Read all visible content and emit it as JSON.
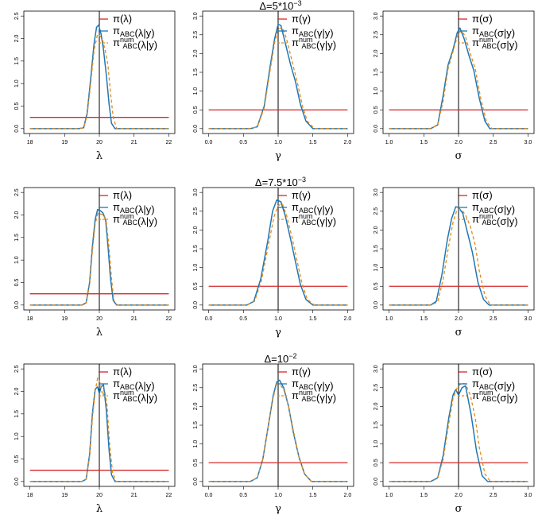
{
  "colors": {
    "prior": "#d62728",
    "abc": "#1f77b4",
    "num": "#e08a1e",
    "axis": "#000000",
    "truth": "#000000"
  },
  "legend_placement": "top-right",
  "row_titles": [
    {
      "main": "Δ=5*10",
      "exp": "−3"
    },
    {
      "main": "Δ=7.5*10",
      "exp": "−3"
    },
    {
      "main": "Δ=10",
      "exp": "−2"
    }
  ],
  "chart_data": [
    {
      "type": "line",
      "row": 0,
      "col": 0,
      "xlabel": "λ",
      "param": "λ",
      "xlim": [
        18,
        22
      ],
      "ylim": [
        0,
        2.5
      ],
      "xticks": [
        "18",
        "19",
        "20",
        "21",
        "22"
      ],
      "yticks": [
        "0.0",
        "0.5",
        "1.0",
        "1.5",
        "2.0",
        "2.5"
      ],
      "truth": 20,
      "series": [
        {
          "name": "π(λ)",
          "kind": "prior",
          "x": [
            18,
            22
          ],
          "y": [
            0.25,
            0.25
          ]
        },
        {
          "name": "πABC(λ|y)",
          "kind": "abc",
          "x": [
            18,
            19.4,
            19.55,
            19.65,
            19.75,
            19.85,
            19.92,
            19.98,
            20.05,
            20.12,
            20.2,
            20.28,
            20.35,
            20.45,
            22
          ],
          "y": [
            0,
            0,
            0.02,
            0.35,
            1.1,
            1.9,
            2.25,
            2.3,
            2.1,
            1.75,
            1.2,
            0.55,
            0.12,
            0,
            0
          ]
        },
        {
          "name": "πABC num(λ|y)",
          "kind": "num",
          "x": [
            18,
            19.4,
            19.55,
            19.65,
            19.75,
            19.85,
            19.95,
            20.02,
            20.1,
            20.18,
            20.25,
            20.32,
            20.4,
            20.5,
            22
          ],
          "y": [
            0,
            0,
            0.02,
            0.3,
            1.0,
            1.75,
            2.1,
            2.05,
            1.95,
            1.7,
            1.4,
            0.8,
            0.25,
            0,
            0
          ]
        }
      ]
    },
    {
      "type": "line",
      "row": 0,
      "col": 1,
      "xlabel": "γ",
      "param": "γ",
      "xlim": [
        0,
        2
      ],
      "ylim": [
        0,
        3
      ],
      "xticks": [
        "0.0",
        "0.5",
        "1.0",
        "1.5",
        "2.0"
      ],
      "yticks": [
        "0.0",
        "0.5",
        "1.0",
        "1.5",
        "2.0",
        "2.5",
        "3.0"
      ],
      "truth": 1.0,
      "series": [
        {
          "name": "π(γ)",
          "kind": "prior",
          "x": [
            0,
            2
          ],
          "y": [
            0.5,
            0.5
          ]
        },
        {
          "name": "πABC(γ|y)",
          "kind": "abc",
          "x": [
            0,
            0.6,
            0.7,
            0.8,
            0.88,
            0.95,
            1.0,
            1.04,
            1.1,
            1.18,
            1.25,
            1.32,
            1.4,
            1.5,
            2
          ],
          "y": [
            0,
            0,
            0.05,
            0.6,
            1.6,
            2.4,
            2.78,
            2.75,
            2.3,
            1.7,
            1.25,
            0.65,
            0.2,
            0,
            0
          ]
        },
        {
          "name": "πABC num(γ|y)",
          "kind": "num",
          "x": [
            0,
            0.6,
            0.7,
            0.8,
            0.88,
            0.95,
            1.0,
            1.06,
            1.12,
            1.2,
            1.28,
            1.35,
            1.42,
            1.52,
            2
          ],
          "y": [
            0,
            0,
            0.05,
            0.55,
            1.5,
            2.3,
            2.65,
            2.7,
            2.4,
            1.8,
            1.2,
            0.6,
            0.2,
            0,
            0
          ]
        }
      ]
    },
    {
      "type": "line",
      "row": 0,
      "col": 2,
      "xlabel": "σ",
      "param": "σ",
      "xlim": [
        1,
        3
      ],
      "ylim": [
        0,
        3
      ],
      "xticks": [
        "1.0",
        "1.5",
        "2.0",
        "2.5",
        "3.0"
      ],
      "yticks": [
        "0.0",
        "0.5",
        "1.0",
        "1.5",
        "2.0",
        "2.5",
        "3.0"
      ],
      "truth": 2.0,
      "series": [
        {
          "name": "π(σ)",
          "kind": "prior",
          "x": [
            1,
            3
          ],
          "y": [
            0.5,
            0.5
          ]
        },
        {
          "name": "πABC(σ|y)",
          "kind": "abc",
          "x": [
            1,
            1.6,
            1.7,
            1.78,
            1.85,
            1.92,
            1.98,
            2.02,
            2.08,
            2.15,
            2.22,
            2.3,
            2.38,
            2.45,
            3
          ],
          "y": [
            0,
            0,
            0.1,
            0.9,
            1.7,
            2.1,
            2.55,
            2.68,
            2.4,
            1.95,
            1.55,
            0.8,
            0.2,
            0,
            0
          ]
        },
        {
          "name": "πABC num(σ|y)",
          "kind": "num",
          "x": [
            1,
            1.6,
            1.7,
            1.78,
            1.85,
            1.92,
            1.98,
            2.04,
            2.1,
            2.17,
            2.24,
            2.32,
            2.4,
            2.48,
            3
          ],
          "y": [
            0,
            0,
            0.1,
            0.75,
            1.6,
            2.05,
            2.45,
            2.62,
            2.45,
            2.0,
            1.6,
            0.8,
            0.2,
            0,
            0
          ]
        }
      ]
    },
    {
      "type": "line",
      "row": 1,
      "col": 0,
      "xlabel": "λ",
      "param": "λ",
      "xlim": [
        18,
        22
      ],
      "ylim": [
        0,
        2.5
      ],
      "xticks": [
        "18",
        "19",
        "20",
        "21",
        "22"
      ],
      "yticks": [
        "0.0",
        "0.5",
        "1.0",
        "1.5",
        "2.0",
        "2.5"
      ],
      "truth": 20,
      "series": [
        {
          "name": "π(λ)",
          "kind": "prior",
          "x": [
            18,
            22
          ],
          "y": [
            0.25,
            0.25
          ]
        },
        {
          "name": "πABC(λ|y)",
          "kind": "abc",
          "x": [
            18,
            19.5,
            19.62,
            19.72,
            19.8,
            19.88,
            19.95,
            20.02,
            20.1,
            20.18,
            20.25,
            20.32,
            20.4,
            20.5,
            22
          ],
          "y": [
            0,
            0,
            0.05,
            0.5,
            1.3,
            1.9,
            2.12,
            2.1,
            2.05,
            1.9,
            1.3,
            0.6,
            0.1,
            0,
            0
          ]
        },
        {
          "name": "πABC num(λ|y)",
          "kind": "num",
          "x": [
            18,
            19.5,
            19.62,
            19.72,
            19.8,
            19.88,
            19.96,
            20.04,
            20.12,
            20.2,
            20.27,
            20.35,
            20.42,
            20.52,
            22
          ],
          "y": [
            0,
            0,
            0.04,
            0.45,
            1.2,
            1.8,
            2.05,
            2.02,
            2.0,
            1.85,
            1.35,
            0.6,
            0.1,
            0,
            0
          ]
        }
      ]
    },
    {
      "type": "line",
      "row": 1,
      "col": 1,
      "xlabel": "γ",
      "param": "γ",
      "xlim": [
        0,
        2
      ],
      "ylim": [
        0,
        3
      ],
      "xticks": [
        "0.0",
        "0.5",
        "1.0",
        "1.5",
        "2.0"
      ],
      "yticks": [
        "0.0",
        "0.5",
        "1.0",
        "1.5",
        "2.0",
        "2.5",
        "3.0"
      ],
      "truth": 1.0,
      "series": [
        {
          "name": "π(γ)",
          "kind": "prior",
          "x": [
            0,
            2
          ],
          "y": [
            0.5,
            0.5
          ]
        },
        {
          "name": "πABC(γ|y)",
          "kind": "abc",
          "x": [
            0,
            0.55,
            0.65,
            0.75,
            0.85,
            0.92,
            0.98,
            1.04,
            1.1,
            1.18,
            1.25,
            1.32,
            1.4,
            1.5,
            2
          ],
          "y": [
            0,
            0,
            0.1,
            0.7,
            1.7,
            2.5,
            2.8,
            2.75,
            2.4,
            1.75,
            1.15,
            0.55,
            0.15,
            0,
            0
          ]
        },
        {
          "name": "πABC num(γ|y)",
          "kind": "num",
          "x": [
            0,
            0.55,
            0.66,
            0.76,
            0.86,
            0.94,
            1.0,
            1.06,
            1.12,
            1.2,
            1.27,
            1.34,
            1.42,
            1.52,
            2
          ],
          "y": [
            0,
            0,
            0.1,
            0.65,
            1.6,
            2.35,
            2.65,
            2.7,
            2.4,
            1.8,
            1.2,
            0.6,
            0.15,
            0,
            0
          ]
        }
      ]
    },
    {
      "type": "line",
      "row": 1,
      "col": 2,
      "xlabel": "σ",
      "param": "σ",
      "xlim": [
        1,
        3
      ],
      "ylim": [
        0,
        3
      ],
      "xticks": [
        "1.0",
        "1.5",
        "2.0",
        "2.5",
        "3.0"
      ],
      "yticks": [
        "0.0",
        "0.5",
        "1.0",
        "1.5",
        "2.0",
        "2.5",
        "3.0"
      ],
      "truth": 2.0,
      "series": [
        {
          "name": "π(σ)",
          "kind": "prior",
          "x": [
            1,
            3
          ],
          "y": [
            0.5,
            0.5
          ]
        },
        {
          "name": "πABC(σ|y)",
          "kind": "abc",
          "x": [
            1,
            1.6,
            1.68,
            1.76,
            1.84,
            1.9,
            1.96,
            2.0,
            2.06,
            2.12,
            2.2,
            2.28,
            2.36,
            2.44,
            3
          ],
          "y": [
            0,
            0,
            0.1,
            0.8,
            1.75,
            2.3,
            2.62,
            2.6,
            2.45,
            2.0,
            1.4,
            0.6,
            0.15,
            0,
            0
          ]
        },
        {
          "name": "πABC num(σ|y)",
          "kind": "num",
          "x": [
            1,
            1.6,
            1.7,
            1.78,
            1.86,
            1.92,
            1.98,
            2.04,
            2.1,
            2.17,
            2.24,
            2.3,
            2.38,
            2.46,
            3
          ],
          "y": [
            0,
            0,
            0.08,
            0.7,
            1.6,
            2.2,
            2.55,
            2.55,
            2.4,
            2.1,
            1.6,
            0.9,
            0.25,
            0,
            0
          ]
        }
      ]
    },
    {
      "type": "line",
      "row": 2,
      "col": 0,
      "xlabel": "λ",
      "param": "λ",
      "xlim": [
        18,
        22
      ],
      "ylim": [
        0,
        2.5
      ],
      "xticks": [
        "18",
        "19",
        "20",
        "21",
        "22"
      ],
      "yticks": [
        "0.0",
        "0.5",
        "1.0",
        "1.5",
        "2.0",
        "2.5"
      ],
      "truth": 20,
      "series": [
        {
          "name": "π(λ)",
          "kind": "prior",
          "x": [
            18,
            22
          ],
          "y": [
            0.25,
            0.25
          ]
        },
        {
          "name": "πABC(λ|y)",
          "kind": "abc",
          "x": [
            18,
            19.5,
            19.62,
            19.72,
            19.8,
            19.88,
            19.95,
            20.0,
            20.05,
            20.12,
            20.2,
            20.28,
            20.35,
            20.45,
            22
          ],
          "y": [
            0,
            0,
            0.05,
            0.6,
            1.5,
            2.05,
            2.1,
            1.95,
            2.1,
            2.15,
            1.6,
            0.7,
            0.15,
            0,
            0
          ]
        },
        {
          "name": "πABC num(λ|y)",
          "kind": "num",
          "x": [
            18,
            19.5,
            19.62,
            19.72,
            19.8,
            19.88,
            19.95,
            20.02,
            20.1,
            20.16,
            20.22,
            20.3,
            20.38,
            20.48,
            22
          ],
          "y": [
            0,
            0,
            0.05,
            0.55,
            1.4,
            2.0,
            2.3,
            2.2,
            1.9,
            2.0,
            1.7,
            0.8,
            0.2,
            0,
            0
          ]
        }
      ]
    },
    {
      "type": "line",
      "row": 2,
      "col": 1,
      "xlabel": "γ",
      "param": "γ",
      "xlim": [
        0,
        2
      ],
      "ylim": [
        0,
        3
      ],
      "xticks": [
        "0.0",
        "0.5",
        "1.0",
        "1.5",
        "2.0"
      ],
      "yticks": [
        "0.0",
        "0.5",
        "1.0",
        "1.5",
        "2.0",
        "2.5",
        "3.0"
      ],
      "truth": 1.0,
      "series": [
        {
          "name": "π(γ)",
          "kind": "prior",
          "x": [
            0,
            2
          ],
          "y": [
            0.5,
            0.5
          ]
        },
        {
          "name": "πABC(γ|y)",
          "kind": "abc",
          "x": [
            0,
            0.6,
            0.7,
            0.78,
            0.86,
            0.93,
            0.98,
            1.02,
            1.08,
            1.15,
            1.22,
            1.3,
            1.38,
            1.48,
            2
          ],
          "y": [
            0,
            0,
            0.1,
            0.6,
            1.5,
            2.3,
            2.65,
            2.7,
            2.5,
            2.0,
            1.3,
            0.65,
            0.2,
            0,
            0
          ]
        },
        {
          "name": "πABC num(γ|y)",
          "kind": "num",
          "x": [
            0,
            0.6,
            0.7,
            0.78,
            0.86,
            0.93,
            0.98,
            1.02,
            1.08,
            1.15,
            1.22,
            1.3,
            1.38,
            1.48,
            2
          ],
          "y": [
            0,
            0,
            0.1,
            0.6,
            1.5,
            2.25,
            2.6,
            2.6,
            2.45,
            2.0,
            1.35,
            0.65,
            0.2,
            0,
            0
          ]
        }
      ]
    },
    {
      "type": "line",
      "row": 2,
      "col": 2,
      "xlabel": "σ",
      "param": "σ",
      "xlim": [
        1,
        3
      ],
      "ylim": [
        0,
        3
      ],
      "xticks": [
        "1.0",
        "1.5",
        "2.0",
        "2.5",
        "3.0"
      ],
      "yticks": [
        "0.0",
        "0.5",
        "1.0",
        "1.5",
        "2.0",
        "2.5",
        "3.0"
      ],
      "truth": 2.0,
      "series": [
        {
          "name": "π(σ)",
          "kind": "prior",
          "x": [
            1,
            3
          ],
          "y": [
            0.5,
            0.5
          ]
        },
        {
          "name": "πABC(σ|y)",
          "kind": "abc",
          "x": [
            1,
            1.6,
            1.7,
            1.78,
            1.86,
            1.92,
            1.96,
            2.0,
            2.05,
            2.1,
            2.18,
            2.26,
            2.34,
            2.42,
            3
          ],
          "y": [
            0,
            0,
            0.1,
            0.7,
            1.7,
            2.3,
            2.45,
            2.3,
            2.5,
            2.55,
            1.8,
            0.8,
            0.15,
            0,
            0
          ]
        },
        {
          "name": "πABC num(σ|y)",
          "kind": "num",
          "x": [
            1,
            1.6,
            1.7,
            1.78,
            1.86,
            1.92,
            1.98,
            2.04,
            2.1,
            2.17,
            2.24,
            2.3,
            2.38,
            2.46,
            3
          ],
          "y": [
            0,
            0,
            0.08,
            0.6,
            1.55,
            2.2,
            2.5,
            2.62,
            2.6,
            2.3,
            1.7,
            0.9,
            0.2,
            0,
            0
          ]
        }
      ]
    }
  ]
}
